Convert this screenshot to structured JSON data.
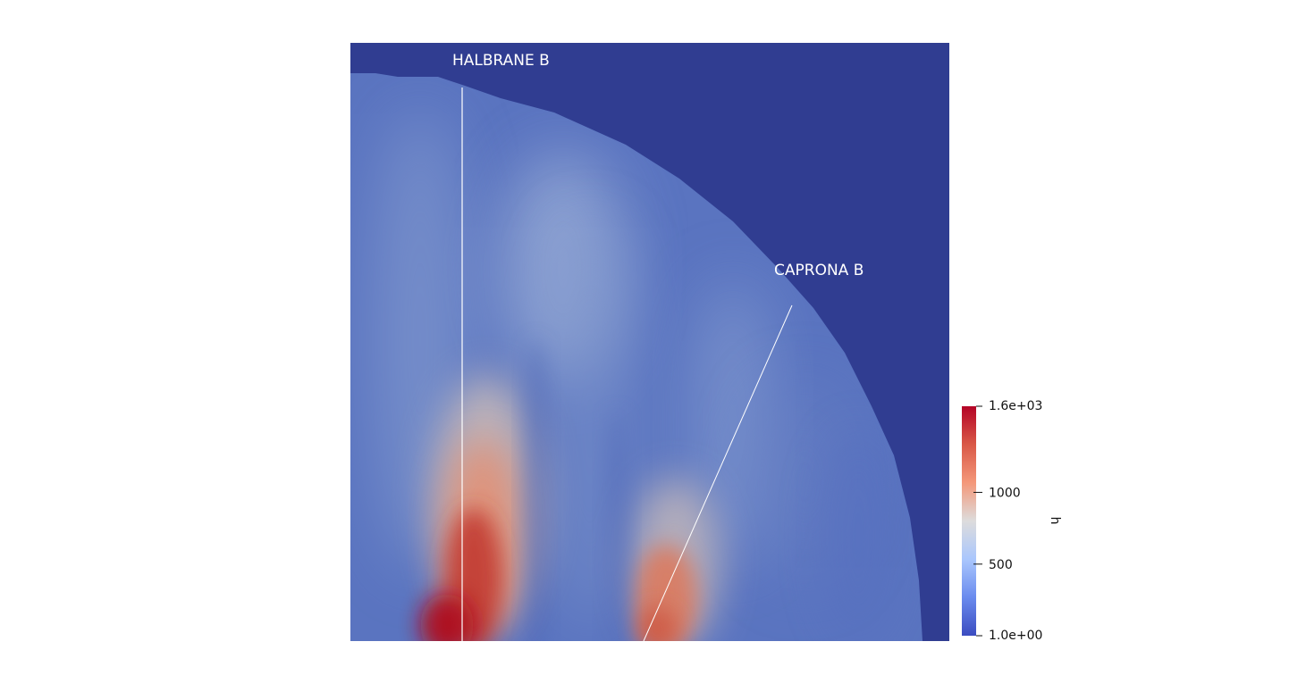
{
  "field": {
    "outside_color": "#303d91",
    "base_color": "#5a74c0"
  },
  "transects": [
    {
      "label": "HALBRANE B"
    },
    {
      "label": "CAPRONA B"
    }
  ],
  "colorbar": {
    "title": "h",
    "min_label": "1.0e+00",
    "max_label": "1.6e+03",
    "min": 1,
    "max": 1600,
    "ticks": [
      {
        "value": 500,
        "label": "500"
      },
      {
        "value": 1000,
        "label": "1000"
      }
    ],
    "colors": [
      "#3b4cc0",
      "#6a8bee",
      "#aac7fd",
      "#dddcdc",
      "#f4987a",
      "#d95847",
      "#b40426"
    ]
  }
}
